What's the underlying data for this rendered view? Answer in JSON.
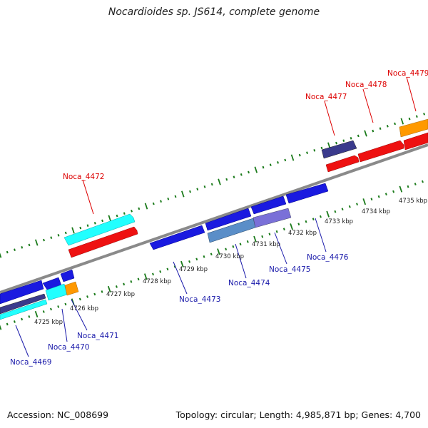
{
  "title": "Nocardioides sp. JS614, complete genome",
  "footer": {
    "accession": "Accession: NC_008699",
    "summary": "Topology: circular; Length: 4,985,871 bp; Genes: 4,700"
  },
  "colors": {
    "backbone": "#8a8a8a",
    "tick": "#1a7a1a",
    "forward_label": "#dd0000",
    "reverse_label": "#1a1aaa",
    "red": "#ee1111",
    "blue": "#1a1ae0",
    "cyan": "#22ffff",
    "orange": "#ff9900",
    "dark_purple": "#3a3a8c",
    "medium_purple": "#7a70d8",
    "steel_blue": "#5a8ec8"
  },
  "scale_ticks": [
    "4725 kbp",
    "4726 kbp",
    "4727 kbp",
    "4728 kbp",
    "4729 kbp",
    "4730 kbp",
    "4731 kbp",
    "4732 kbp",
    "4733 kbp",
    "4734 kbp",
    "4735 kbp"
  ],
  "forward_labels": [
    "Noca_4472",
    "Noca_4477",
    "Noca_4478",
    "Noca_4479"
  ],
  "reverse_labels": [
    "Noca_4469",
    "Noca_4470",
    "Noca_4471",
    "Noca_4473",
    "Noca_4474",
    "Noca_4475",
    "Noca_4476"
  ]
}
